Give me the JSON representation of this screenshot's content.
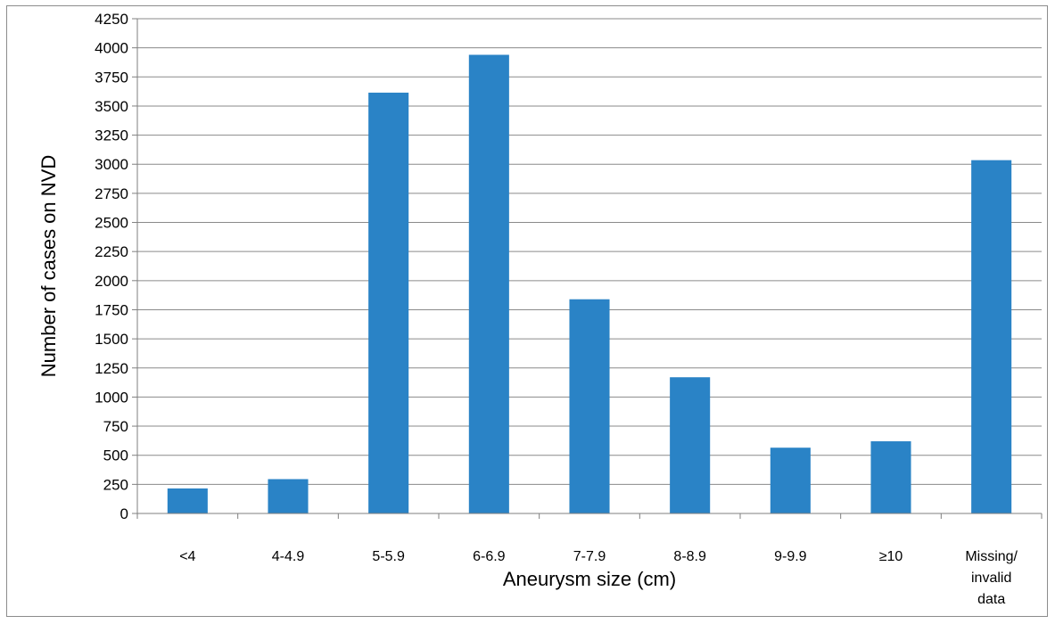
{
  "chart_data": {
    "type": "bar",
    "title": "",
    "xlabel": "Aneurysm size (cm)",
    "ylabel": "Number of cases on NVD",
    "categories": [
      [
        "<4"
      ],
      [
        "4-4.9"
      ],
      [
        "5-5.9"
      ],
      [
        "6-6.9"
      ],
      [
        "7-7.9"
      ],
      [
        "8-8.9"
      ],
      [
        "9-9.9"
      ],
      [
        "≥10"
      ],
      [
        "Missing/",
        "invalid",
        "data"
      ]
    ],
    "values": [
      215,
      295,
      3615,
      3940,
      1840,
      1170,
      565,
      620,
      3035
    ],
    "ylim": [
      0,
      4250
    ],
    "yticks": [
      0,
      250,
      500,
      750,
      1000,
      1250,
      1500,
      1750,
      2000,
      2250,
      2500,
      2750,
      3000,
      3250,
      3500,
      3750,
      4000,
      4250
    ],
    "grid": true,
    "legend": "none",
    "colors": {
      "bar": "#2a83c6",
      "grid": "#8a8a8a",
      "axis": "#7f7f7f",
      "frame": "#8c8c8c"
    }
  }
}
